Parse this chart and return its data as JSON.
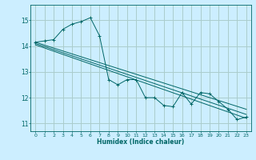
{
  "xlabel": "Humidex (Indice chaleur)",
  "bg_color": "#cceeff",
  "grid_color": "#aacccc",
  "line_color": "#006666",
  "xlim": [
    -0.5,
    23.5
  ],
  "ylim": [
    10.7,
    15.6
  ],
  "yticks": [
    11,
    12,
    13,
    14,
    15
  ],
  "xticks": [
    0,
    1,
    2,
    3,
    4,
    5,
    6,
    7,
    8,
    9,
    10,
    11,
    12,
    13,
    14,
    15,
    16,
    17,
    18,
    19,
    20,
    21,
    22,
    23
  ],
  "series": [
    [
      0,
      14.15
    ],
    [
      1,
      14.2
    ],
    [
      2,
      14.25
    ],
    [
      3,
      14.65
    ],
    [
      4,
      14.85
    ],
    [
      5,
      14.95
    ],
    [
      6,
      15.1
    ],
    [
      7,
      14.4
    ],
    [
      8,
      12.7
    ],
    [
      9,
      12.5
    ],
    [
      10,
      12.7
    ],
    [
      11,
      12.7
    ],
    [
      12,
      12.0
    ],
    [
      13,
      12.0
    ],
    [
      14,
      11.7
    ],
    [
      15,
      11.65
    ],
    [
      16,
      12.2
    ],
    [
      17,
      11.75
    ],
    [
      18,
      12.2
    ],
    [
      19,
      12.15
    ],
    [
      20,
      11.85
    ],
    [
      21,
      11.55
    ],
    [
      22,
      11.15
    ],
    [
      23,
      11.25
    ]
  ],
  "line1": [
    [
      0,
      14.15
    ],
    [
      23,
      11.55
    ]
  ],
  "line2": [
    [
      0,
      14.1
    ],
    [
      23,
      11.35
    ]
  ],
  "line3": [
    [
      0,
      14.05
    ],
    [
      23,
      11.2
    ]
  ]
}
